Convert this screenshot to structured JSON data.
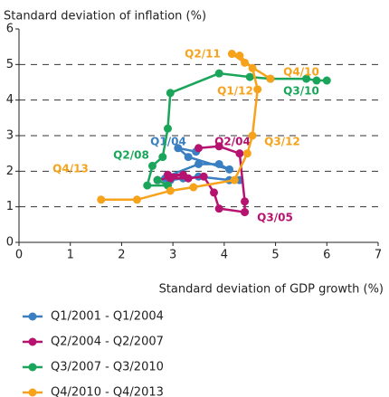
{
  "chart_data": {
    "type": "scatter",
    "title": "Standard deviation of inflation (%)",
    "x_label": "Standard deviation of GDP growth (%)",
    "xlim": [
      0,
      7
    ],
    "xticks": [
      0,
      1,
      2,
      3,
      4,
      5,
      6,
      7
    ],
    "ylim": [
      0,
      6
    ],
    "yticks": [
      0,
      1,
      2,
      3,
      4,
      5,
      6
    ],
    "grid": true,
    "legend": "bottom",
    "series": [
      {
        "name": "Q1/2001 - Q1/2004",
        "color": "#3a7fc1",
        "x": [
          4.3,
          4.1,
          3.5,
          3.2,
          2.95,
          2.85,
          2.7,
          3.5,
          3.9,
          4.1,
          3.3,
          3.1,
          3.45
        ],
        "y": [
          1.75,
          1.75,
          1.85,
          1.8,
          1.75,
          1.8,
          1.75,
          2.2,
          2.2,
          2.05,
          2.4,
          2.65,
          2.55
        ],
        "labels": [
          "Q1/04"
        ]
      },
      {
        "name": "Q2/2004 - Q2/2007",
        "color": "#b5136f",
        "x": [
          3.5,
          3.9,
          4.3,
          4.4,
          4.4,
          3.9,
          3.8,
          3.6,
          3.3,
          2.95,
          2.9,
          3.2,
          2.7
        ],
        "y": [
          2.65,
          2.7,
          2.5,
          1.15,
          0.85,
          0.95,
          1.4,
          1.85,
          1.8,
          1.8,
          1.9,
          1.9,
          1.75
        ],
        "labels": [
          "Q2/04",
          "Q3/05"
        ]
      },
      {
        "name": "Q3/2007 - Q3/2010",
        "color": "#1aa55a",
        "x": [
          2.7,
          2.9,
          2.5,
          2.6,
          2.8,
          2.9,
          2.95,
          3.9,
          4.5,
          4.9,
          5.6,
          5.8,
          6.0
        ],
        "y": [
          1.75,
          1.6,
          1.6,
          2.15,
          2.4,
          3.2,
          4.2,
          4.75,
          4.65,
          4.6,
          4.6,
          4.55,
          4.55
        ],
        "labels": [
          "Q2/08",
          "Q3/10"
        ]
      },
      {
        "name": "Q4/2010 - Q4/2013",
        "color": "#f7a21b",
        "x": [
          4.9,
          4.4,
          4.15,
          4.3,
          4.55,
          4.65,
          4.55,
          4.45,
          4.2,
          3.4,
          2.95,
          2.3,
          1.6
        ],
        "y": [
          4.6,
          5.05,
          5.3,
          5.25,
          4.9,
          4.3,
          3.0,
          2.5,
          1.75,
          1.55,
          1.45,
          1.2,
          1.2
        ],
        "labels": [
          "Q4/10",
          "Q2/11",
          "Q1/12",
          "Q3/12",
          "Q4/13"
        ]
      }
    ]
  }
}
